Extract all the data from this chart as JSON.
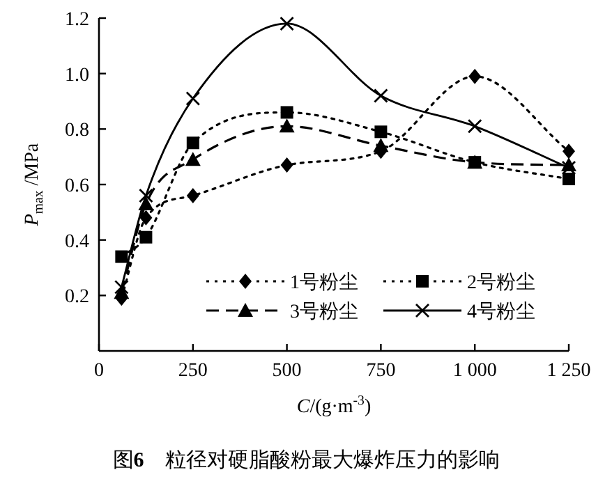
{
  "chart_data": {
    "type": "line",
    "title": "图**6**　粒径对硬脂酸粉最大爆炸压力的影响",
    "xlabel": "*C*/(g·m$^{-3}$)",
    "ylabel": "*P*$_{max}$ /MPa",
    "x": [
      60,
      125,
      250,
      500,
      750,
      1000,
      1250
    ],
    "xlim": [
      0,
      1250
    ],
    "xticks": [
      0,
      250,
      500,
      750,
      {
        "value": 1000,
        "label": "1 000"
      },
      {
        "value": 1250,
        "label": "1 250"
      }
    ],
    "ylim": [
      0,
      1.2
    ],
    "yticks": [
      0.2,
      0.4,
      0.6,
      0.8,
      {
        "value": 1.0,
        "label": "1.0"
      },
      1.2
    ],
    "legend": "bottom right",
    "grid": false,
    "series": [
      {
        "name": "1号粉尘",
        "color": "#000000",
        "marker": "diamond",
        "line_style": "dotted",
        "values": [
          0.19,
          0.48,
          0.56,
          0.67,
          0.72,
          0.99,
          0.72
        ]
      },
      {
        "name": "2号粉尘",
        "color": "#000000",
        "marker": "square",
        "line_style": "dotted",
        "values": [
          0.34,
          0.41,
          0.75,
          0.86,
          0.79,
          0.68,
          0.62
        ]
      },
      {
        "name": "3号粉尘",
        "color": "#000000",
        "marker": "triangle",
        "line_style": "dashed",
        "values": [
          0.21,
          0.53,
          0.69,
          0.81,
          0.74,
          0.68,
          0.67
        ]
      },
      {
        "name": "4号粉尘",
        "color": "#000000",
        "marker": "cross",
        "line_style": "solid",
        "values": [
          0.23,
          0.56,
          0.91,
          1.18,
          0.92,
          0.81,
          0.66
        ]
      }
    ]
  }
}
